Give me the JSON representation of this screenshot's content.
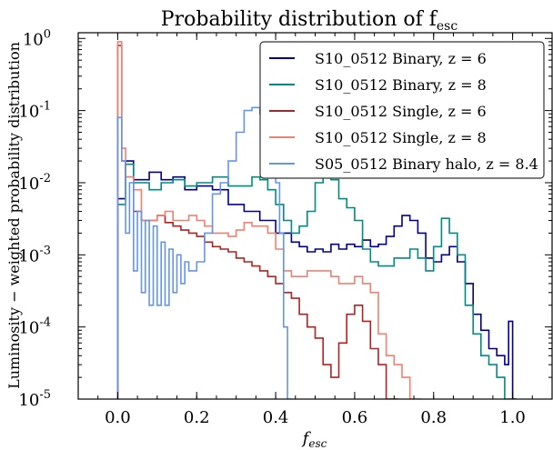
{
  "chart_data": {
    "type": "histogram-step",
    "title": "Probability distribution of f",
    "title_sub": "esc",
    "xlabel": "f",
    "xlabel_sub": "esc",
    "ylabel": "Luminosity − weighted probability distribution",
    "xlim": [
      -0.1,
      1.1
    ],
    "ylim": [
      1e-05,
      1.2
    ],
    "yscale": "log",
    "x_ticks": [
      0.0,
      0.2,
      0.4,
      0.6,
      0.8,
      1.0
    ],
    "x_tick_labels": [
      "0.0",
      "0.2",
      "0.4",
      "0.6",
      "0.8",
      "1.0"
    ],
    "y_ticks": [
      1e-05,
      0.0001,
      0.001,
      0.01,
      0.1,
      1
    ],
    "y_tick_labels": [
      {
        "base": "10",
        "exp": "-5"
      },
      {
        "base": "10",
        "exp": "-4"
      },
      {
        "base": "10",
        "exp": "-3"
      },
      {
        "base": "10",
        "exp": "-2"
      },
      {
        "base": "10",
        "exp": "-1"
      },
      {
        "base": "10",
        "exp": "0"
      }
    ],
    "legend_position": "top-right",
    "grid": false,
    "bin_width": 0.01,
    "series": [
      {
        "name": "S10_0512 Binary,  z = 6",
        "color": "#00008b",
        "points": [
          [
            0.0,
            0.006
          ],
          [
            0.02,
            0.02
          ],
          [
            0.04,
            0.011
          ],
          [
            0.08,
            0.014
          ],
          [
            0.11,
            0.011
          ],
          [
            0.14,
            0.012
          ],
          [
            0.17,
            0.008
          ],
          [
            0.2,
            0.009
          ],
          [
            0.24,
            0.008
          ],
          [
            0.28,
            0.005
          ],
          [
            0.32,
            0.004
          ],
          [
            0.36,
            0.003
          ],
          [
            0.4,
            0.002
          ],
          [
            0.44,
            0.0015
          ],
          [
            0.46,
            0.0013
          ],
          [
            0.48,
            0.0011
          ],
          [
            0.5,
            0.0012
          ],
          [
            0.52,
            0.0011
          ],
          [
            0.54,
            0.0014
          ],
          [
            0.56,
            0.0012
          ],
          [
            0.58,
            0.0014
          ],
          [
            0.6,
            0.0013
          ],
          [
            0.62,
            0.0016
          ],
          [
            0.64,
            0.0013
          ],
          [
            0.66,
            0.0014
          ],
          [
            0.68,
            0.0018
          ],
          [
            0.7,
            0.0025
          ],
          [
            0.72,
            0.0035
          ],
          [
            0.74,
            0.003
          ],
          [
            0.76,
            0.002
          ],
          [
            0.78,
            0.0009
          ],
          [
            0.8,
            0.0008
          ],
          [
            0.82,
            0.001
          ],
          [
            0.84,
            0.0013
          ],
          [
            0.86,
            0.0008
          ],
          [
            0.88,
            0.0004
          ],
          [
            0.9,
            0.00015
          ],
          [
            0.92,
            9e-05
          ],
          [
            0.94,
            5e-05
          ],
          [
            0.96,
            4e-05
          ],
          [
            0.98,
            3e-05
          ],
          [
            0.99,
            0.00012
          ],
          [
            1.0,
            1e-05
          ]
        ]
      },
      {
        "name": "S10_0512 Binary,  z = 8",
        "color": "#008b80",
        "points": [
          [
            0.0,
            0.005
          ],
          [
            0.02,
            0.018
          ],
          [
            0.04,
            0.01
          ],
          [
            0.08,
            0.008
          ],
          [
            0.11,
            0.01
          ],
          [
            0.14,
            0.011
          ],
          [
            0.17,
            0.009
          ],
          [
            0.2,
            0.01
          ],
          [
            0.24,
            0.012
          ],
          [
            0.28,
            0.009
          ],
          [
            0.32,
            0.009
          ],
          [
            0.34,
            0.012
          ],
          [
            0.36,
            0.011
          ],
          [
            0.38,
            0.008
          ],
          [
            0.4,
            0.005
          ],
          [
            0.42,
            0.003
          ],
          [
            0.44,
            0.002
          ],
          [
            0.46,
            0.0025
          ],
          [
            0.48,
            0.004
          ],
          [
            0.5,
            0.01
          ],
          [
            0.52,
            0.015
          ],
          [
            0.54,
            0.011
          ],
          [
            0.56,
            0.006
          ],
          [
            0.58,
            0.0045
          ],
          [
            0.6,
            0.003
          ],
          [
            0.62,
            0.0012
          ],
          [
            0.64,
            0.0008
          ],
          [
            0.66,
            0.0007
          ],
          [
            0.68,
            0.0007
          ],
          [
            0.7,
            0.0009
          ],
          [
            0.72,
            0.0009
          ],
          [
            0.74,
            0.0012
          ],
          [
            0.76,
            0.0009
          ],
          [
            0.78,
            0.0006
          ],
          [
            0.8,
            0.0013
          ],
          [
            0.82,
            0.0032
          ],
          [
            0.84,
            0.002
          ],
          [
            0.86,
            0.001
          ],
          [
            0.88,
            0.0002
          ],
          [
            0.9,
            8e-05
          ],
          [
            0.92,
            4e-05
          ],
          [
            0.94,
            3e-05
          ],
          [
            0.96,
            2e-05
          ],
          [
            0.98,
            1e-05
          ],
          [
            1.0,
            1e-05
          ]
        ]
      },
      {
        "name": "S10_0512 Single,  z = 6",
        "color": "#b22222",
        "points": [
          [
            0.0,
            0.8
          ],
          [
            0.01,
            0.02
          ],
          [
            0.02,
            0.012
          ],
          [
            0.04,
            0.004
          ],
          [
            0.06,
            0.003
          ],
          [
            0.08,
            0.003
          ],
          [
            0.1,
            0.0035
          ],
          [
            0.12,
            0.0028
          ],
          [
            0.14,
            0.0025
          ],
          [
            0.16,
            0.0022
          ],
          [
            0.18,
            0.002
          ],
          [
            0.2,
            0.0018
          ],
          [
            0.22,
            0.0015
          ],
          [
            0.24,
            0.0013
          ],
          [
            0.26,
            0.0012
          ],
          [
            0.28,
            0.0011
          ],
          [
            0.3,
            0.0009
          ],
          [
            0.32,
            0.0008
          ],
          [
            0.34,
            0.0007
          ],
          [
            0.36,
            0.0006
          ],
          [
            0.38,
            0.0005
          ],
          [
            0.4,
            0.0004
          ],
          [
            0.42,
            0.0003
          ],
          [
            0.44,
            0.00025
          ],
          [
            0.46,
            0.00015
          ],
          [
            0.48,
            0.0001
          ],
          [
            0.5,
            7e-05
          ],
          [
            0.52,
            3e-05
          ],
          [
            0.54,
            2e-05
          ],
          [
            0.56,
            6e-05
          ],
          [
            0.58,
            0.00015
          ],
          [
            0.6,
            0.0002
          ],
          [
            0.62,
            0.00012
          ],
          [
            0.64,
            5e-05
          ],
          [
            0.66,
            3e-05
          ],
          [
            0.68,
            1e-05
          ],
          [
            0.7,
            1e-05
          ]
        ]
      },
      {
        "name": "S10_0512 Single,  z = 8",
        "color": "#f08070",
        "points": [
          [
            0.0,
            0.9
          ],
          [
            0.01,
            0.03
          ],
          [
            0.02,
            0.012
          ],
          [
            0.04,
            0.008
          ],
          [
            0.06,
            0.003
          ],
          [
            0.08,
            0.003
          ],
          [
            0.1,
            0.0035
          ],
          [
            0.12,
            0.004
          ],
          [
            0.14,
            0.003
          ],
          [
            0.16,
            0.003
          ],
          [
            0.18,
            0.0035
          ],
          [
            0.2,
            0.003
          ],
          [
            0.22,
            0.0025
          ],
          [
            0.24,
            0.002
          ],
          [
            0.26,
            0.002
          ],
          [
            0.28,
            0.0018
          ],
          [
            0.3,
            0.0022
          ],
          [
            0.32,
            0.0028
          ],
          [
            0.34,
            0.0025
          ],
          [
            0.36,
            0.0025
          ],
          [
            0.38,
            0.002
          ],
          [
            0.4,
            0.0012
          ],
          [
            0.42,
            0.0006
          ],
          [
            0.44,
            0.0005
          ],
          [
            0.46,
            0.0005
          ],
          [
            0.48,
            0.0006
          ],
          [
            0.5,
            0.0006
          ],
          [
            0.52,
            0.0006
          ],
          [
            0.54,
            0.0005
          ],
          [
            0.56,
            0.0004
          ],
          [
            0.58,
            0.0004
          ],
          [
            0.6,
            0.0005
          ],
          [
            0.62,
            0.0004
          ],
          [
            0.64,
            0.0003
          ],
          [
            0.66,
            8e-05
          ],
          [
            0.68,
            4e-05
          ],
          [
            0.7,
            3e-05
          ],
          [
            0.72,
            2e-05
          ],
          [
            0.74,
            1e-05
          ],
          [
            0.76,
            1e-05
          ]
        ]
      },
      {
        "name": "S05_0512 Binary halo,  z = 8.4",
        "color": "#6495ed",
        "points": [
          [
            0.0,
            0.08
          ],
          [
            0.01,
            0.02
          ],
          [
            0.02,
            0.002
          ],
          [
            0.03,
            0.01
          ],
          [
            0.04,
            0.0006
          ],
          [
            0.05,
            0.004
          ],
          [
            0.06,
            0.0003
          ],
          [
            0.07,
            0.003
          ],
          [
            0.08,
            0.0002
          ],
          [
            0.09,
            0.0025
          ],
          [
            0.1,
            0.0002
          ],
          [
            0.11,
            0.0015
          ],
          [
            0.12,
            0.0002
          ],
          [
            0.13,
            0.0012
          ],
          [
            0.14,
            0.0003
          ],
          [
            0.15,
            0.001
          ],
          [
            0.16,
            0.0004
          ],
          [
            0.17,
            0.0008
          ],
          [
            0.18,
            0.0006
          ],
          [
            0.2,
            0.0008
          ],
          [
            0.22,
            0.002
          ],
          [
            0.24,
            0.007
          ],
          [
            0.26,
            0.01
          ],
          [
            0.28,
            0.02
          ],
          [
            0.3,
            0.05
          ],
          [
            0.32,
            0.1
          ],
          [
            0.34,
            0.11
          ],
          [
            0.36,
            0.09
          ],
          [
            0.38,
            0.05
          ],
          [
            0.4,
            0.01
          ],
          [
            0.41,
            0.002
          ],
          [
            0.42,
            0.0001
          ],
          [
            0.43,
            1e-05
          ]
        ]
      }
    ]
  }
}
